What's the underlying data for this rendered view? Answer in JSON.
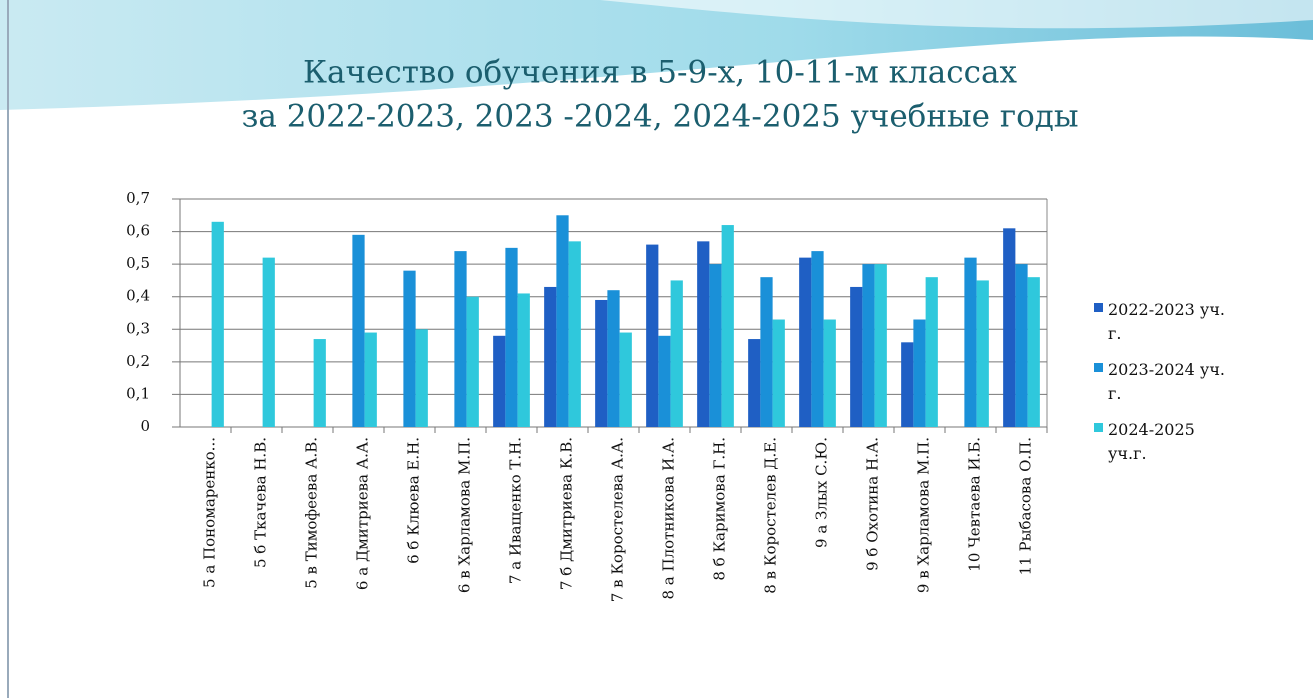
{
  "chart_data": {
    "type": "bar",
    "title": "Качество обучения в 5-9-х, 10-11-м классах",
    "subtitle": "за 2022-2023, 2023 -2024, 2024-2025 учебные годы",
    "categories": [
      "5 а Пономаренко...",
      "5 б Ткачева Н.В.",
      "5 в Тимофеева А.В.",
      "6 а Дмитриева А.А.",
      "6 б Клюева Е.Н.",
      "6 в Харламова М.П.",
      "7 а Иващенко Т.Н.",
      "7 б Дмитриева К.В.",
      "7 в Коростелева А.А.",
      "8 а Плотникова И.А.",
      "8 б Каримова Г.Н.",
      "8 в Коростелев Д.Е.",
      "9 а Злых С.Ю.",
      "9 б Охотина Н.А.",
      "9 в Харламова М.П.",
      "10 Чевтаева И.Б.",
      "11 Рыбасова О.П."
    ],
    "series": [
      {
        "name": "2022-2023 уч. г.",
        "color": "#1f5fc4",
        "values": [
          null,
          null,
          null,
          null,
          null,
          null,
          0.28,
          0.43,
          0.39,
          0.56,
          0.57,
          0.27,
          0.52,
          0.43,
          0.26,
          null,
          0.61
        ]
      },
      {
        "name": "2023-2024 уч. г.",
        "color": "#1a90d8",
        "values": [
          null,
          null,
          null,
          0.59,
          0.48,
          0.54,
          0.55,
          0.65,
          0.42,
          0.28,
          0.5,
          0.46,
          0.54,
          0.5,
          0.33,
          0.52,
          0.5
        ]
      },
      {
        "name": "2024-2025 уч.г.",
        "color": "#2fc8dc",
        "values": [
          0.63,
          0.52,
          0.27,
          0.29,
          0.3,
          0.4,
          0.41,
          0.57,
          0.29,
          0.45,
          0.62,
          0.33,
          0.33,
          0.5,
          0.46,
          0.45,
          0.46
        ]
      }
    ],
    "ylim": [
      0,
      0.7
    ],
    "yticks": [
      0,
      {
        "value": 0.1,
        "label": "0,1"
      },
      {
        "value": 0.2,
        "label": "0,2"
      },
      {
        "value": 0.3,
        "label": "0,3"
      },
      {
        "value": 0.4,
        "label": "0,4"
      },
      {
        "value": 0.5,
        "label": "0,5"
      },
      {
        "value": 0.6,
        "label": "0,6"
      },
      {
        "value": 0.7,
        "label": "0,7"
      }
    ],
    "grid": true,
    "legend": "right"
  }
}
